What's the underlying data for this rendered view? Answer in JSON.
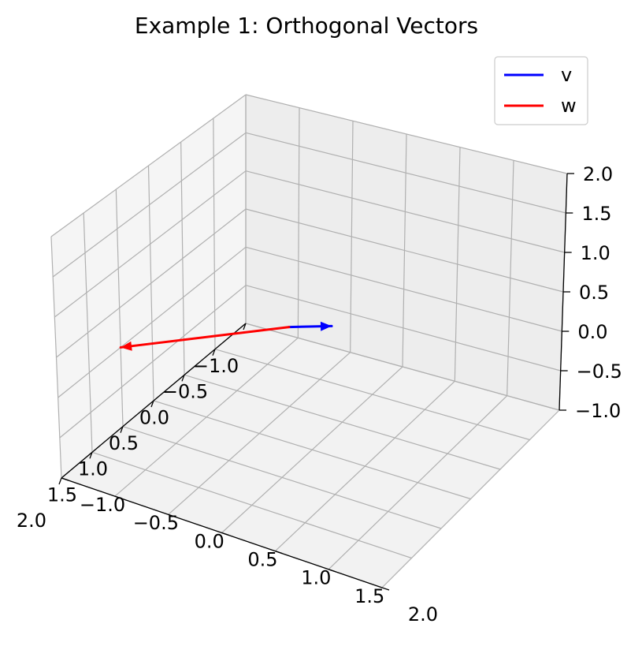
{
  "chart_data": {
    "type": "line",
    "projection": "3d",
    "title": "Example 1: Orthogonal Vectors",
    "xlabel": "",
    "ylabel": "",
    "zlabel": "",
    "xlim": [
      -1,
      2
    ],
    "ylim": [
      -1,
      2
    ],
    "zlim": [
      -1,
      2
    ],
    "x_ticks": [
      "−1.0",
      "−0.5",
      "0.0",
      "0.5",
      "1.0",
      "1.5",
      "2.0"
    ],
    "y_ticks": [
      "−1.0",
      "−0.5",
      "0.0",
      "0.5",
      "1.0",
      "1.5",
      "2.0"
    ],
    "z_ticks": [
      "−1.0",
      "−0.5",
      "0.0",
      "0.5",
      "1.0",
      "1.5",
      "2.0"
    ],
    "grid": true,
    "legend_position": "top-right",
    "series": [
      {
        "name": "v",
        "color": "#0000ff",
        "origin": [
          0,
          0,
          0
        ],
        "vector": [
          1,
          1,
          1
        ],
        "arrowhead": true
      },
      {
        "name": "w",
        "color": "#ff0000",
        "origin": [
          0,
          0,
          0
        ],
        "vector": [
          1,
          -1,
          0
        ],
        "arrowhead": true
      }
    ]
  }
}
